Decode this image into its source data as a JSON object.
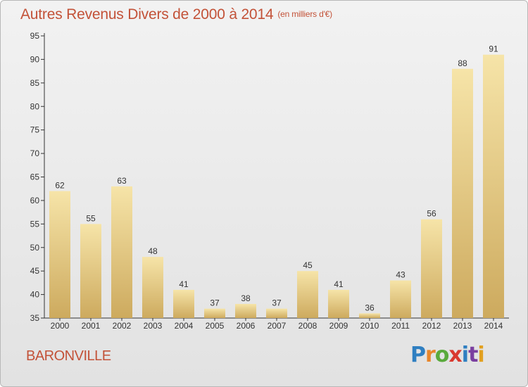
{
  "header": {
    "title": "Autres Revenus Divers de 2000 à 2014",
    "unit": "(en milliers d'€)"
  },
  "footer": {
    "place": "BARONVILLE",
    "brand": "Proxiti",
    "brand_colors": [
      "#2f7fc1",
      "#e8862b",
      "#5aaa3c",
      "#d9392f",
      "#2f7fc1",
      "#7a3fa0",
      "#e2a020"
    ]
  },
  "colors": {
    "title": "#c35238",
    "bar_light": "#f6e4a8",
    "bar_dark": "#cdaa5e",
    "axis": "#333333"
  },
  "chart_data": {
    "type": "bar",
    "categories": [
      "2000",
      "2001",
      "2002",
      "2003",
      "2004",
      "2005",
      "2006",
      "2007",
      "2008",
      "2009",
      "2010",
      "2011",
      "2012",
      "2013",
      "2014"
    ],
    "values": [
      62,
      55,
      63,
      48,
      41,
      37,
      38,
      37,
      45,
      41,
      36,
      43,
      56,
      88,
      91
    ],
    "ylim": [
      35,
      95
    ],
    "yticks": [
      35,
      40,
      45,
      50,
      55,
      60,
      65,
      70,
      75,
      80,
      85,
      90,
      95
    ],
    "grid": false,
    "legend": "none"
  }
}
